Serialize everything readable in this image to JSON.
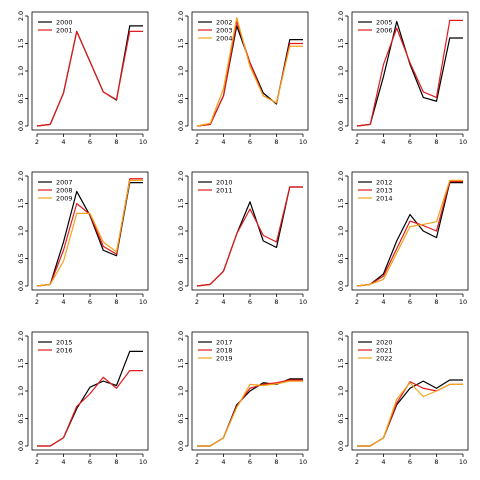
{
  "colors": {
    "black": "#000000",
    "red": "#e41a1c",
    "orange": "#f4a21a"
  },
  "chart_data": [
    {
      "type": "line",
      "x": [
        2,
        3,
        4,
        5,
        6,
        7,
        8,
        9,
        10
      ],
      "xlim": [
        2,
        10
      ],
      "ylim": [
        0,
        2
      ],
      "xticks": [
        "2",
        "4",
        "6",
        "8",
        "10"
      ],
      "yticks": [
        "0.0",
        "0.5",
        "1.0",
        "1.5",
        "2.0"
      ],
      "legend": "top-left",
      "series": [
        {
          "name": "2000",
          "color": "#000000",
          "values": [
            0.0,
            0.03,
            0.6,
            1.72,
            1.17,
            0.62,
            0.47,
            1.82,
            1.82
          ]
        },
        {
          "name": "2001",
          "color": "#e41a1c",
          "values": [
            0.0,
            0.03,
            0.6,
            1.72,
            1.17,
            0.62,
            0.48,
            1.72,
            1.72
          ]
        }
      ]
    },
    {
      "type": "line",
      "x": [
        2,
        3,
        4,
        5,
        6,
        7,
        8,
        9,
        10
      ],
      "xlim": [
        2,
        10
      ],
      "ylim": [
        0,
        2
      ],
      "xticks": [
        "2",
        "4",
        "6",
        "8",
        "10"
      ],
      "yticks": [
        "0.0",
        "0.5",
        "1.0",
        "1.5",
        "2.0"
      ],
      "legend": "top-left",
      "series": [
        {
          "name": "2002",
          "color": "#000000",
          "values": [
            0.0,
            0.03,
            0.55,
            1.82,
            1.15,
            0.6,
            0.4,
            1.57,
            1.57
          ]
        },
        {
          "name": "2003",
          "color": "#e41a1c",
          "values": [
            0.0,
            0.03,
            0.55,
            1.9,
            1.15,
            0.55,
            0.42,
            1.5,
            1.5
          ]
        },
        {
          "name": "2004",
          "color": "#f4a21a",
          "values": [
            0.0,
            0.05,
            0.68,
            1.97,
            1.08,
            0.55,
            0.42,
            1.45,
            1.45
          ]
        }
      ]
    },
    {
      "type": "line",
      "x": [
        2,
        3,
        4,
        5,
        6,
        7,
        8,
        9,
        10
      ],
      "xlim": [
        2,
        10
      ],
      "ylim": [
        0,
        2
      ],
      "xticks": [
        "2",
        "4",
        "6",
        "8",
        "10"
      ],
      "yticks": [
        "0.0",
        "0.5",
        "1.0",
        "1.5",
        "2.0"
      ],
      "legend": "top-left",
      "series": [
        {
          "name": "2005",
          "color": "#000000",
          "values": [
            0.0,
            0.03,
            0.9,
            1.9,
            1.12,
            0.52,
            0.45,
            1.6,
            1.6
          ]
        },
        {
          "name": "2006",
          "color": "#e41a1c",
          "values": [
            0.0,
            0.03,
            1.12,
            1.78,
            1.15,
            0.62,
            0.52,
            1.92,
            1.92
          ]
        }
      ]
    },
    {
      "type": "line",
      "x": [
        2,
        3,
        4,
        5,
        6,
        7,
        8,
        9,
        10
      ],
      "xlim": [
        2,
        10
      ],
      "ylim": [
        0,
        2
      ],
      "xticks": [
        "2",
        "4",
        "6",
        "8",
        "10"
      ],
      "yticks": [
        "0.0",
        "0.5",
        "1.0",
        "1.5",
        "2.0"
      ],
      "legend": "top-left",
      "series": [
        {
          "name": "2007",
          "color": "#000000",
          "values": [
            0.0,
            0.03,
            0.8,
            1.72,
            1.28,
            0.65,
            0.55,
            1.88,
            1.88
          ]
        },
        {
          "name": "2008",
          "color": "#e41a1c",
          "values": [
            0.0,
            0.03,
            0.65,
            1.5,
            1.3,
            0.72,
            0.58,
            1.95,
            1.95
          ]
        },
        {
          "name": "2009",
          "color": "#f4a21a",
          "values": [
            0.0,
            0.03,
            0.45,
            1.32,
            1.32,
            0.8,
            0.62,
            1.92,
            1.92
          ]
        }
      ]
    },
    {
      "type": "line",
      "x": [
        2,
        3,
        4,
        5,
        6,
        7,
        8,
        9,
        10
      ],
      "xlim": [
        2,
        10
      ],
      "ylim": [
        0,
        2
      ],
      "xticks": [
        "2",
        "4",
        "6",
        "8",
        "10"
      ],
      "yticks": [
        "0.0",
        "0.5",
        "1.0",
        "1.5",
        "2.0"
      ],
      "legend": "top-left",
      "series": [
        {
          "name": "2010",
          "color": "#000000",
          "values": [
            0.0,
            0.03,
            0.27,
            0.95,
            1.53,
            0.82,
            0.7,
            1.8,
            1.8
          ]
        },
        {
          "name": "2011",
          "color": "#e41a1c",
          "values": [
            0.0,
            0.03,
            0.27,
            0.95,
            1.4,
            0.92,
            0.8,
            1.8,
            1.8
          ]
        }
      ]
    },
    {
      "type": "line",
      "x": [
        2,
        3,
        4,
        5,
        6,
        7,
        8,
        9,
        10
      ],
      "xlim": [
        2,
        10
      ],
      "ylim": [
        0,
        2
      ],
      "xticks": [
        "2",
        "4",
        "6",
        "8",
        "10"
      ],
      "yticks": [
        "0.0",
        "0.5",
        "1.0",
        "1.5",
        "2.0"
      ],
      "legend": "top-left",
      "series": [
        {
          "name": "2012",
          "color": "#000000",
          "values": [
            0.0,
            0.03,
            0.22,
            0.82,
            1.3,
            1.0,
            0.88,
            1.88,
            1.88
          ]
        },
        {
          "name": "2013",
          "color": "#e41a1c",
          "values": [
            0.0,
            0.03,
            0.18,
            0.68,
            1.18,
            1.1,
            1.0,
            1.9,
            1.9
          ]
        },
        {
          "name": "2014",
          "color": "#f4a21a",
          "values": [
            0.0,
            0.03,
            0.12,
            0.6,
            1.08,
            1.12,
            1.17,
            1.92,
            1.92
          ]
        }
      ]
    },
    {
      "type": "line",
      "x": [
        2,
        3,
        4,
        5,
        6,
        7,
        8,
        9,
        10
      ],
      "xlim": [
        2,
        10
      ],
      "ylim": [
        0,
        2
      ],
      "xticks": [
        "2",
        "4",
        "6",
        "8",
        "10"
      ],
      "yticks": [
        "0.0",
        "0.5",
        "1.0",
        "1.5",
        "2.0"
      ],
      "legend": "top-left",
      "series": [
        {
          "name": "2015",
          "color": "#000000",
          "values": [
            0.0,
            0.0,
            0.15,
            0.68,
            1.07,
            1.18,
            1.1,
            1.72,
            1.72
          ]
        },
        {
          "name": "2016",
          "color": "#e41a1c",
          "values": [
            0.0,
            0.0,
            0.15,
            0.72,
            0.95,
            1.25,
            1.05,
            1.37,
            1.37
          ]
        }
      ]
    },
    {
      "type": "line",
      "x": [
        2,
        3,
        4,
        5,
        6,
        7,
        8,
        9,
        10
      ],
      "xlim": [
        2,
        10
      ],
      "ylim": [
        0,
        2
      ],
      "xticks": [
        "2",
        "4",
        "6",
        "8",
        "10"
      ],
      "yticks": [
        "0.0",
        "0.5",
        "1.0",
        "1.5",
        "2.0"
      ],
      "legend": "top-left",
      "series": [
        {
          "name": "2017",
          "color": "#000000",
          "values": [
            0.0,
            0.0,
            0.15,
            0.75,
            1.0,
            1.15,
            1.12,
            1.22,
            1.22
          ]
        },
        {
          "name": "2018",
          "color": "#e41a1c",
          "values": [
            0.0,
            0.0,
            0.15,
            0.72,
            1.05,
            1.12,
            1.15,
            1.2,
            1.2
          ]
        },
        {
          "name": "2019",
          "color": "#f4a21a",
          "values": [
            0.0,
            0.0,
            0.15,
            0.7,
            1.12,
            1.1,
            1.13,
            1.18,
            1.18
          ]
        }
      ]
    },
    {
      "type": "line",
      "x": [
        2,
        3,
        4,
        5,
        6,
        7,
        8,
        9,
        10
      ],
      "xlim": [
        2,
        10
      ],
      "ylim": [
        0,
        2
      ],
      "xticks": [
        "2",
        "4",
        "6",
        "8",
        "10"
      ],
      "yticks": [
        "0.0",
        "0.5",
        "1.0",
        "1.5",
        "2.0"
      ],
      "legend": "top-left",
      "series": [
        {
          "name": "2020",
          "color": "#000000",
          "values": [
            0.0,
            0.0,
            0.15,
            0.75,
            1.05,
            1.18,
            1.05,
            1.2,
            1.2
          ]
        },
        {
          "name": "2021",
          "color": "#e41a1c",
          "values": [
            0.0,
            0.0,
            0.15,
            0.78,
            1.17,
            1.05,
            1.0,
            1.12,
            1.12
          ]
        },
        {
          "name": "2022",
          "color": "#f4a21a",
          "values": [
            0.0,
            0.0,
            0.15,
            0.85,
            1.15,
            0.9,
            1.0,
            1.12,
            1.12
          ]
        }
      ]
    }
  ]
}
